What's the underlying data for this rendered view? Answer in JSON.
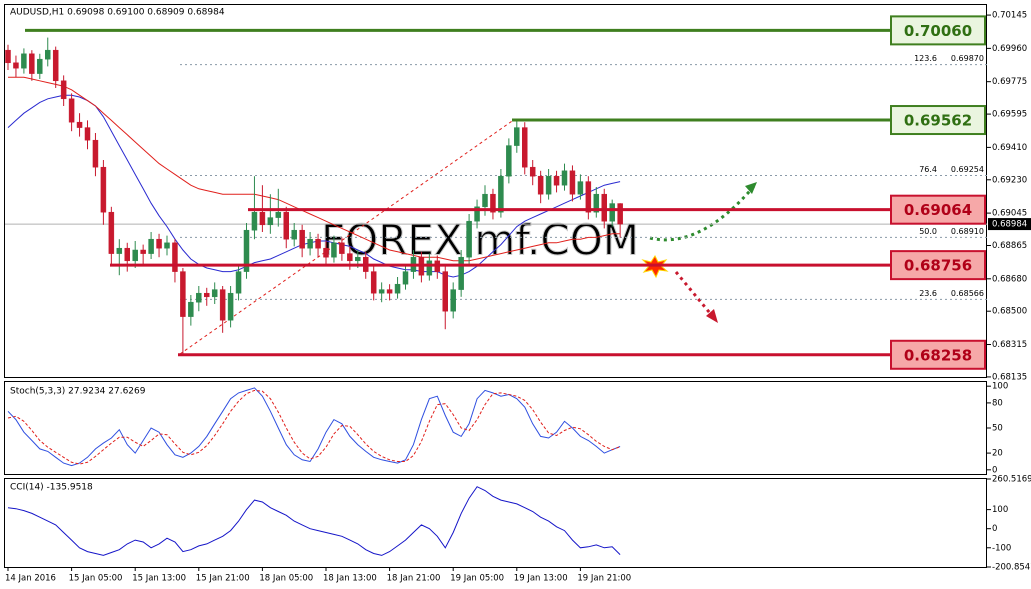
{
  "chart_data": [
    {
      "type": "candlestick",
      "title": "AUDUSD,H1  0.69098 0.69100 0.68909 0.68984",
      "watermark": "FOREXimf.COM",
      "categories": [
        "14 Jan 2016",
        null,
        null,
        null,
        null,
        null,
        null,
        null,
        "15 Jan 05:00",
        null,
        null,
        null,
        null,
        null,
        null,
        null,
        "15 Jan 13:00",
        null,
        null,
        null,
        null,
        null,
        null,
        null,
        "15 Jan 21:00",
        null,
        null,
        null,
        null,
        null,
        null,
        null,
        "18 Jan 05:00",
        null,
        null,
        null,
        null,
        null,
        null,
        null,
        "18 Jan 13:00",
        null,
        null,
        null,
        null,
        null,
        null,
        null,
        "18 Jan 21:00",
        null,
        null,
        null,
        null,
        null,
        null,
        null,
        "19 Jan 05:00",
        null,
        null,
        null,
        null,
        null,
        null,
        null,
        "19 Jan 13:00",
        null,
        null,
        null,
        null,
        null,
        null,
        null,
        "19 Jan 21:00",
        null,
        null,
        null,
        null,
        null
      ],
      "open": [
        0.6995,
        0.6988,
        0.6985,
        0.6993,
        0.6982,
        0.699,
        0.6995,
        0.6978,
        0.6968,
        0.6955,
        0.6952,
        0.6945,
        0.693,
        0.6905,
        0.6882,
        0.6885,
        0.6878,
        0.6884,
        0.6882,
        0.689,
        0.6885,
        0.6888,
        0.6872,
        0.6847,
        0.6855,
        0.686,
        0.6858,
        0.6862,
        0.6845,
        0.686,
        0.6872,
        0.6895,
        0.6905,
        0.6898,
        0.6902,
        0.6905,
        0.689,
        0.6895,
        0.6885,
        0.689,
        0.6885,
        0.688,
        0.6888,
        0.6882,
        0.6878,
        0.688,
        0.6872,
        0.686,
        0.6862,
        0.686,
        0.6865,
        0.6872,
        0.688,
        0.687,
        0.6878,
        0.6872,
        0.685,
        0.6862,
        0.688,
        0.69,
        0.6908,
        0.6915,
        0.6905,
        0.6925,
        0.6942,
        0.6952,
        0.693,
        0.6925,
        0.6915,
        0.6925,
        0.692,
        0.6928,
        0.6915,
        0.6922,
        0.6905,
        0.6915,
        0.69,
        0.69098
      ],
      "high": [
        0.6998,
        0.6992,
        0.6996,
        0.6995,
        0.6993,
        0.7002,
        0.6997,
        0.6981,
        0.6971,
        0.696,
        0.6956,
        0.6949,
        0.6934,
        0.6908,
        0.689,
        0.6888,
        0.6889,
        0.6887,
        0.6894,
        0.6893,
        0.6892,
        0.689,
        0.6874,
        0.6859,
        0.6864,
        0.6863,
        0.6866,
        0.6864,
        0.6864,
        0.6876,
        0.6899,
        0.6925,
        0.692,
        0.6915,
        0.6918,
        0.6908,
        0.6899,
        0.6898,
        0.6894,
        0.6893,
        0.6889,
        0.6892,
        0.6891,
        0.6886,
        0.6884,
        0.6883,
        0.6875,
        0.6866,
        0.6865,
        0.6869,
        0.6876,
        0.6884,
        0.6883,
        0.6882,
        0.6881,
        0.6875,
        0.6866,
        0.6884,
        0.6904,
        0.6912,
        0.692,
        0.6918,
        0.6929,
        0.6946,
        0.6956,
        0.6955,
        0.6934,
        0.6928,
        0.6929,
        0.6928,
        0.6932,
        0.6931,
        0.6926,
        0.6925,
        0.6919,
        0.6918,
        0.6912,
        0.691
      ],
      "low": [
        0.6984,
        0.698,
        0.6982,
        0.6978,
        0.6979,
        0.6986,
        0.6974,
        0.6964,
        0.695,
        0.6947,
        0.694,
        0.6925,
        0.6898,
        0.6876,
        0.687,
        0.6872,
        0.6874,
        0.6876,
        0.6879,
        0.688,
        0.6881,
        0.6866,
        0.6826,
        0.6842,
        0.685,
        0.6853,
        0.6854,
        0.6838,
        0.6841,
        0.6856,
        0.6868,
        0.689,
        0.6894,
        0.6893,
        0.6897,
        0.6885,
        0.6886,
        0.688,
        0.6881,
        0.688,
        0.6875,
        0.6877,
        0.6878,
        0.6873,
        0.6874,
        0.6868,
        0.6856,
        0.6855,
        0.6856,
        0.6857,
        0.6862,
        0.6868,
        0.6866,
        0.6867,
        0.6868,
        0.684,
        0.6846,
        0.6858,
        0.6876,
        0.6896,
        0.6903,
        0.6901,
        0.6902,
        0.6921,
        0.6938,
        0.6926,
        0.692,
        0.691,
        0.6912,
        0.6916,
        0.6917,
        0.6911,
        0.6912,
        0.6901,
        0.6902,
        0.6896,
        0.6897,
        0.68909
      ],
      "close": [
        0.6988,
        0.6985,
        0.6993,
        0.6982,
        0.699,
        0.6995,
        0.6978,
        0.6968,
        0.6955,
        0.6952,
        0.6945,
        0.693,
        0.6905,
        0.6882,
        0.6885,
        0.6878,
        0.6884,
        0.6882,
        0.689,
        0.6885,
        0.6888,
        0.6872,
        0.6847,
        0.6855,
        0.686,
        0.6858,
        0.6862,
        0.6845,
        0.686,
        0.6872,
        0.6895,
        0.6905,
        0.6898,
        0.6902,
        0.6905,
        0.689,
        0.6895,
        0.6885,
        0.689,
        0.6885,
        0.688,
        0.6888,
        0.6882,
        0.6878,
        0.688,
        0.6872,
        0.686,
        0.6862,
        0.686,
        0.6865,
        0.6872,
        0.688,
        0.687,
        0.6878,
        0.6872,
        0.685,
        0.6862,
        0.688,
        0.69,
        0.6908,
        0.6915,
        0.6905,
        0.6925,
        0.6942,
        0.6952,
        0.693,
        0.6925,
        0.6915,
        0.6925,
        0.692,
        0.6928,
        0.6915,
        0.6922,
        0.6905,
        0.6915,
        0.69,
        0.69098,
        0.68984
      ],
      "up_color": "#2e8b4f",
      "down_color": "#c8192e",
      "lines": [
        {
          "color": "#2a2ad0",
          "values": [
            0.6952,
            0.6956,
            0.696,
            0.6963,
            0.6966,
            0.6968,
            0.6969,
            0.697,
            0.697,
            0.6969,
            0.6967,
            0.6964,
            0.6958,
            0.695,
            0.6942,
            0.6934,
            0.6926,
            0.6918,
            0.691,
            0.6903,
            0.6897,
            0.689,
            0.6884,
            0.6879,
            0.6876,
            0.6874,
            0.6873,
            0.6872,
            0.6872,
            0.6873,
            0.6875,
            0.6877,
            0.6878,
            0.6879,
            0.6881,
            0.6883,
            0.6885,
            0.6887,
            0.6888,
            0.6889,
            0.6889,
            0.6888,
            0.6887,
            0.6886,
            0.6884,
            0.6882,
            0.6879,
            0.6877,
            0.6875,
            0.6874,
            0.6873,
            0.6873,
            0.6872,
            0.6872,
            0.6872,
            0.687,
            0.6869,
            0.687,
            0.6872,
            0.6875,
            0.6879,
            0.6883,
            0.6887,
            0.6892,
            0.6897,
            0.69,
            0.6902,
            0.6904,
            0.6906,
            0.6908,
            0.691,
            0.6912,
            0.6914,
            0.6916,
            0.6918,
            0.692,
            0.6921,
            0.6922
          ]
        },
        {
          "color": "#e0201c",
          "values": [
            0.698,
            0.698,
            0.698,
            0.6979,
            0.6978,
            0.6977,
            0.6976,
            0.6975,
            0.6973,
            0.697,
            0.6967,
            0.6964,
            0.696,
            0.6956,
            0.6952,
            0.6948,
            0.6944,
            0.694,
            0.6936,
            0.6932,
            0.6929,
            0.6926,
            0.6923,
            0.692,
            0.6918,
            0.6917,
            0.6916,
            0.6915,
            0.6915,
            0.6915,
            0.6915,
            0.6915,
            0.6914,
            0.6913,
            0.6912,
            0.691,
            0.6908,
            0.6906,
            0.6904,
            0.6902,
            0.69,
            0.6898,
            0.6896,
            0.6894,
            0.6892,
            0.689,
            0.6888,
            0.6886,
            0.6884,
            0.6883,
            0.6882,
            0.6881,
            0.688,
            0.688,
            0.688,
            0.6879,
            0.6878,
            0.6878,
            0.6878,
            0.6879,
            0.688,
            0.6881,
            0.6882,
            0.6883,
            0.6884,
            0.6885,
            0.6886,
            0.6887,
            0.6888,
            0.6888,
            0.6889,
            0.689,
            0.689,
            0.6891,
            0.6891,
            0.6892,
            0.6893,
            0.6893
          ]
        }
      ],
      "ylim": [
        0.68129,
        0.70201
      ],
      "yticks": [
        0.70145,
        {
          "value": 0.6996,
          "label": "0.69960"
        },
        0.69775,
        0.69595,
        {
          "value": 0.6941,
          "label": "0.69410"
        },
        {
          "value": 0.6923,
          "label": "0.69230"
        },
        0.69045,
        0.68865,
        {
          "value": 0.6868,
          "label": "0.68680"
        },
        {
          "value": 0.685,
          "label": "0.68500"
        },
        0.68315,
        0.68135
      ],
      "current_price": 0.68984,
      "levels": [
        {
          "value": 0.7006,
          "label": "0.70060",
          "color": "green"
        },
        {
          "value": 0.69562,
          "label": "0.69562",
          "color": "green"
        },
        {
          "value": 0.69064,
          "label": "0.69064",
          "color": "red"
        },
        {
          "value": 0.68756,
          "label": "0.68756",
          "color": "red"
        },
        {
          "value": 0.68258,
          "label": "0.68258",
          "color": "red"
        }
      ],
      "fib": [
        {
          "level": 123.6,
          "price": {
            "value": 0.6987,
            "label": "0.69870"
          }
        },
        {
          "level": 76.4,
          "price": 0.69254
        },
        {
          "level": {
            "value": 50,
            "label": "50.0"
          },
          "price": {
            "value": 0.6891,
            "label": "0.68910"
          }
        },
        {
          "level": 23.6,
          "price": 0.68566
        }
      ]
    },
    {
      "type": "line",
      "title": "Stoch(5,3,3) 27.9234 27.6269",
      "series": [
        {
          "color": "#2f4fe0",
          "values": [
            70,
            60,
            45,
            35,
            25,
            22,
            15,
            8,
            5,
            8,
            15,
            25,
            32,
            38,
            48,
            30,
            20,
            35,
            50,
            45,
            30,
            18,
            15,
            20,
            28,
            40,
            55,
            70,
            85,
            92,
            95,
            98,
            88,
            70,
            50,
            30,
            18,
            12,
            10,
            25,
            45,
            60,
            55,
            40,
            30,
            22,
            15,
            12,
            10,
            8,
            12,
            30,
            60,
            85,
            88,
            65,
            45,
            40,
            55,
            85,
            95,
            92,
            88,
            90,
            85,
            75,
            55,
            40,
            38,
            45,
            58,
            50,
            40,
            35,
            28,
            20,
            24,
            27.9234
          ]
        },
        {
          "color": "#e0201c",
          "dash": true,
          "values": [
            62,
            64,
            58,
            47,
            35,
            27,
            21,
            15,
            9,
            7,
            9,
            16,
            24,
            32,
            39,
            39,
            33,
            28,
            35,
            43,
            42,
            31,
            21,
            18,
            21,
            29,
            41,
            55,
            70,
            82,
            91,
            95,
            94,
            85,
            69,
            50,
            33,
            20,
            13,
            16,
            27,
            43,
            53,
            52,
            42,
            31,
            22,
            16,
            12,
            10,
            10,
            17,
            34,
            58,
            78,
            79,
            66,
            50,
            47,
            60,
            78,
            91,
            92,
            90,
            88,
            83,
            72,
            57,
            44,
            41,
            47,
            51,
            49,
            42,
            34,
            28,
            24,
            27.6269
          ]
        }
      ],
      "ylim": [
        -5,
        105
      ],
      "yticks": [
        100,
        80,
        50,
        20,
        0
      ]
    },
    {
      "type": "line",
      "title": "CCI(14) -135.9518",
      "series": [
        {
          "color": "#1515c8",
          "values": [
            110,
            105,
            95,
            80,
            60,
            40,
            20,
            -20,
            -60,
            -100,
            -120,
            -130,
            -140,
            -125,
            -110,
            -80,
            -60,
            -70,
            -100,
            -80,
            -50,
            -70,
            -120,
            -110,
            -90,
            -80,
            -60,
            -40,
            -10,
            40,
            100,
            150,
            140,
            110,
            90,
            70,
            40,
            20,
            0,
            -10,
            -20,
            -30,
            -40,
            -60,
            -80,
            -110,
            -130,
            -140,
            -120,
            -90,
            -60,
            -20,
            20,
            0,
            -40,
            -100,
            -20,
            80,
            160,
            220,
            200,
            170,
            150,
            140,
            130,
            110,
            90,
            60,
            40,
            10,
            -10,
            -60,
            -100,
            -95,
            -85,
            -100,
            -95,
            -135.9518
          ]
        }
      ],
      "ylim": [
        -200.8547,
        260.5169
      ],
      "yticks": [
        260.5169,
        100,
        0,
        -100,
        -200.8547
      ]
    }
  ]
}
